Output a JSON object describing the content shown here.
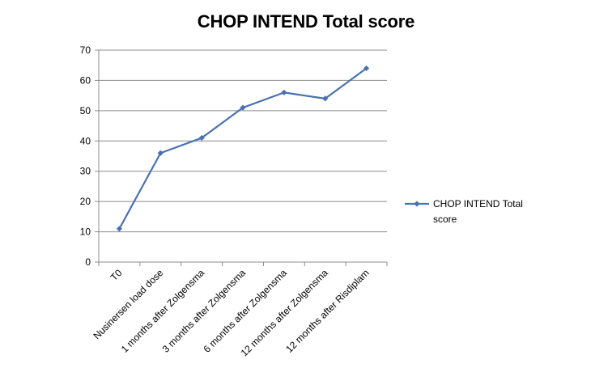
{
  "chart_data": {
    "type": "line",
    "title": "CHOP INTEND Total score",
    "categories": [
      "T0",
      "Nusinersen load dose",
      "1 months after Zolgensma",
      "3 months after Zolgensma",
      "6 months after Zolgensma",
      "12 months after Zolgensma",
      "12 months after Risdiplam"
    ],
    "series": [
      {
        "name": "CHOP INTEND Total score",
        "color": "#4A72B0",
        "values": [
          11,
          36,
          41,
          51,
          56,
          54,
          64
        ]
      }
    ],
    "ylim": [
      0,
      70
    ],
    "yticks": [
      0,
      10,
      20,
      30,
      40,
      50,
      60,
      70
    ],
    "grid": true,
    "legend_position": "right",
    "legend_lines": [
      "CHOP INTEND Total",
      "score"
    ]
  }
}
